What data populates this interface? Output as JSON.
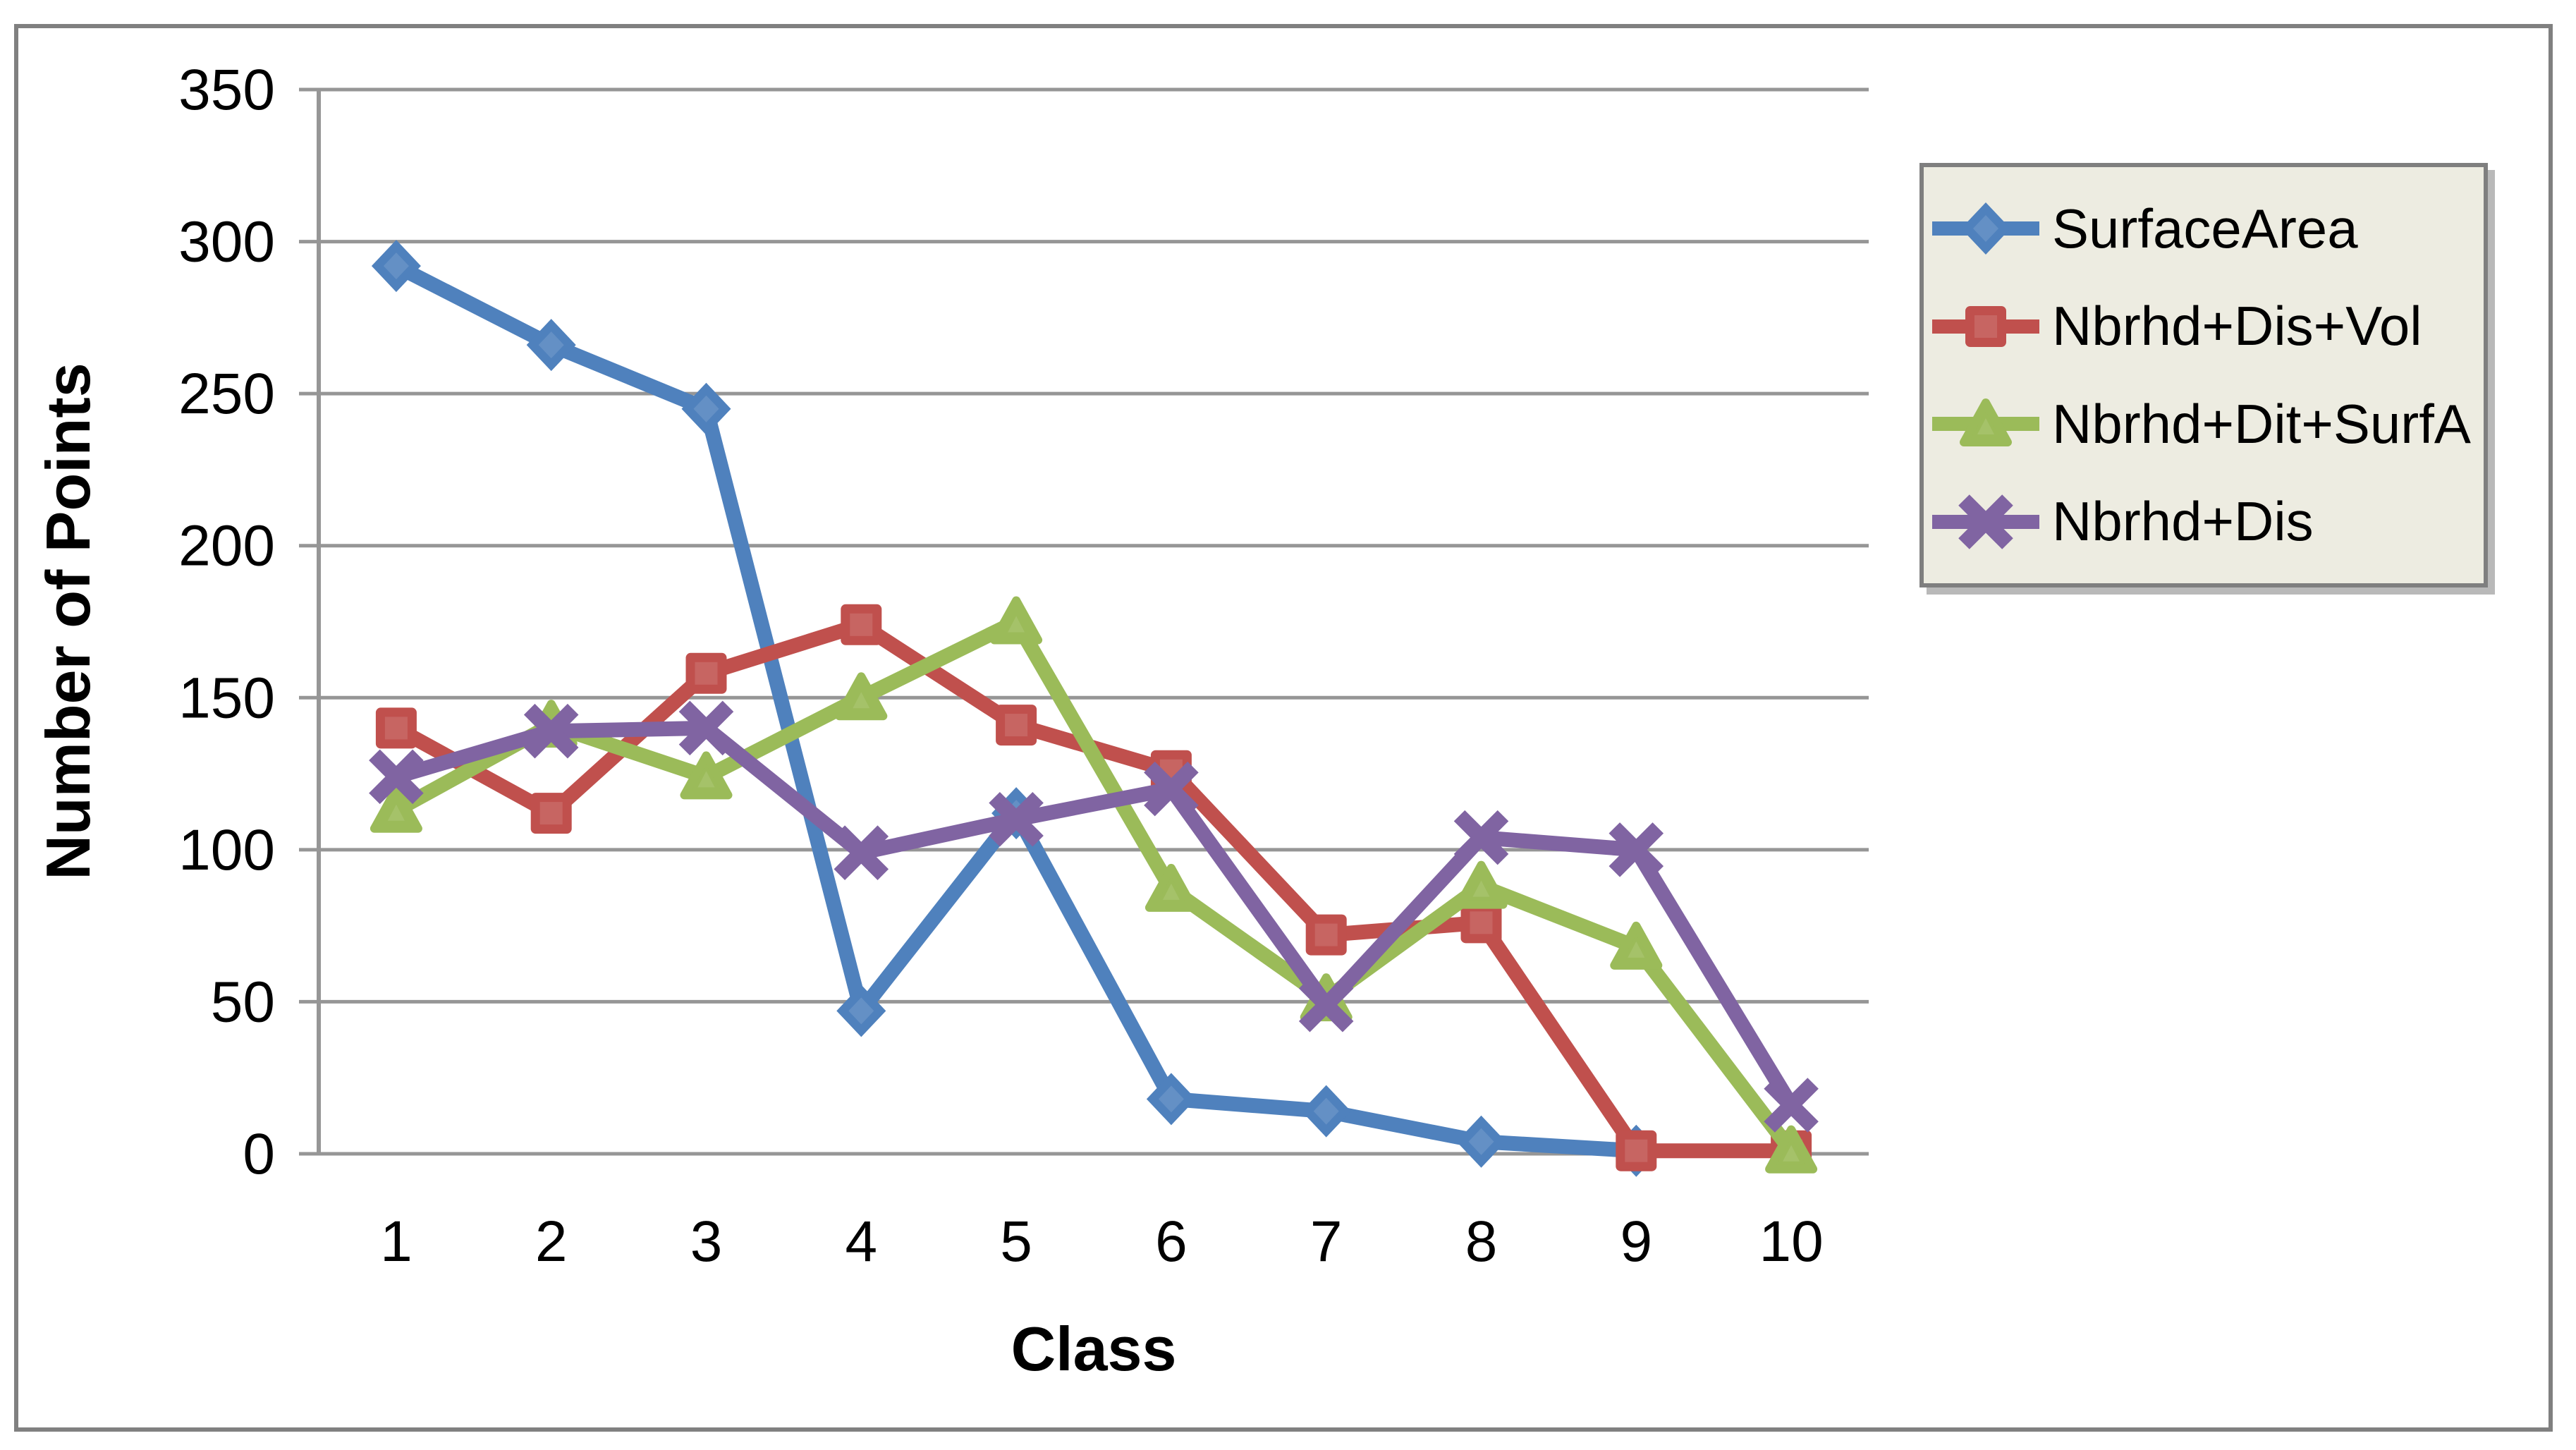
{
  "chart_data": {
    "type": "line",
    "title": "",
    "xlabel": "Class",
    "ylabel": "Number of Points",
    "categories": [
      "1",
      "2",
      "3",
      "4",
      "5",
      "6",
      "7",
      "8",
      "9",
      "10"
    ],
    "ylim": [
      0,
      350
    ],
    "ytick_step": 50,
    "yticks": [
      0,
      50,
      100,
      150,
      200,
      250,
      300,
      350
    ],
    "grid": "horizontal-only",
    "legend_position": "right",
    "series": [
      {
        "name": "SurfaceArea",
        "marker": "diamond",
        "color": "#4F81BD",
        "values": [
          292,
          266,
          245,
          47,
          112,
          18,
          14,
          4,
          1,
          null
        ]
      },
      {
        "name": "Nbrhd+Dis+Vol",
        "marker": "square",
        "color": "#C0504D",
        "values": [
          140,
          112,
          158,
          174,
          141,
          126,
          72,
          76,
          1,
          1
        ]
      },
      {
        "name": "Nbrhd+Dit+SurfA",
        "marker": "triangle",
        "color": "#9BBB59",
        "values": [
          113,
          141,
          124,
          150,
          175,
          87,
          51,
          88,
          68,
          1
        ]
      },
      {
        "name": "Nbrhd+Dis",
        "marker": "x",
        "color": "#8064A2",
        "values": [
          124,
          139,
          140,
          99,
          110,
          120,
          49,
          104,
          100,
          16
        ]
      }
    ]
  },
  "colors": {
    "gridline": "#969696",
    "axis_line": "#969696",
    "outer_border": "#808080",
    "legend_background": "#EDECE1",
    "legend_border": "#7F7F7F",
    "text": "#000000",
    "plot_background": "#FFFFFF"
  }
}
